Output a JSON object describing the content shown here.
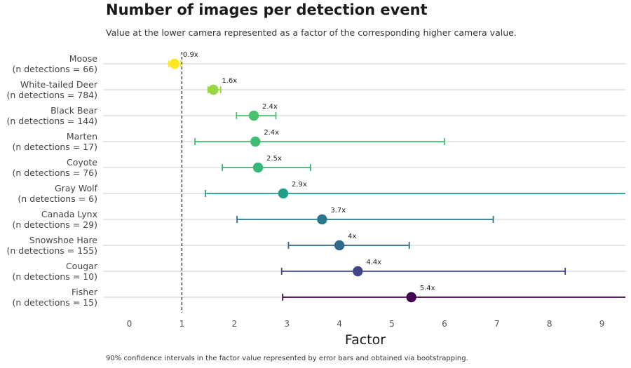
{
  "chart_data": {
    "type": "scatter",
    "title": "Number of images per detection event",
    "subtitle": "Value at the lower camera represented as a factor of the corresponding higher camera value.",
    "caption": "90% confidence intervals in the factor value represented by error bars and obtained via bootstrapping.",
    "xlabel": "Factor",
    "xlim": [
      -0.5,
      9.5
    ],
    "xticks": [
      "0",
      "1",
      "2",
      "3",
      "4",
      "5",
      "6",
      "7",
      "8",
      "9"
    ],
    "reference_line": 1,
    "grid": "horizontal",
    "series": [
      {
        "species": "Moose",
        "detections": "(n detections = 66)",
        "value": 0.86,
        "lo": 0.75,
        "hi": 0.98,
        "label": "0.9x",
        "color": "#fde725"
      },
      {
        "species": "White-tailed Deer",
        "detections": "(n detections = 784)",
        "value": 1.6,
        "lo": 1.5,
        "hi": 1.74,
        "label": "1.6x",
        "color": "#95d840"
      },
      {
        "species": "Black Bear",
        "detections": "(n detections = 144)",
        "value": 2.37,
        "lo": 2.04,
        "hi": 2.79,
        "label": "2.4x",
        "color": "#4ac16d"
      },
      {
        "species": "Marten",
        "detections": "(n detections = 17)",
        "value": 2.4,
        "lo": 1.25,
        "hi": 6.0,
        "label": "2.4x",
        "color": "#3fbc73"
      },
      {
        "species": "Coyote",
        "detections": "(n detections = 76)",
        "value": 2.45,
        "lo": 1.77,
        "hi": 3.45,
        "label": "2.5x",
        "color": "#35b779"
      },
      {
        "species": "Gray Wolf",
        "detections": "(n detections = 6)",
        "value": 2.93,
        "lo": 1.45,
        "hi": 9.5,
        "label": "2.9x",
        "color": "#1f9e89"
      },
      {
        "species": "Canada Lynx",
        "detections": "(n detections = 29)",
        "value": 3.67,
        "lo": 2.05,
        "hi": 6.93,
        "label": "3.7x",
        "color": "#2a788e"
      },
      {
        "species": "Snowshoe Hare",
        "detections": "(n detections = 155)",
        "value": 4.0,
        "lo": 3.03,
        "hi": 5.33,
        "label": "4x",
        "color": "#31688e"
      },
      {
        "species": "Cougar",
        "detections": "(n detections = 10)",
        "value": 4.35,
        "lo": 2.9,
        "hi": 8.3,
        "label": "4.4x",
        "color": "#414487"
      },
      {
        "species": "Fisher",
        "detections": "(n detections = 15)",
        "value": 5.37,
        "lo": 2.92,
        "hi": 9.5,
        "label": "5.4x",
        "color": "#440154"
      }
    ]
  }
}
